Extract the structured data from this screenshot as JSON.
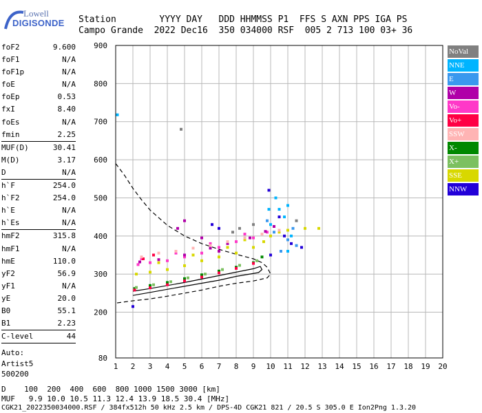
{
  "logo": {
    "line1": "Lowell",
    "line2": "DIGISONDE"
  },
  "header": {
    "line1": "Station        YYYY DAY   DDD HHMMSS P1  FFS S AXN PPS IGA PS",
    "line2": "Campo Grande  2022 Dec16  350 034000 RSF  005 2 713 100 03+ 36"
  },
  "params_group1": [
    {
      "label": "foF2",
      "value": "9.600"
    },
    {
      "label": "foF1",
      "value": "N/A"
    },
    {
      "label": "foF1p",
      "value": "N/A"
    },
    {
      "label": "foE",
      "value": "N/A"
    },
    {
      "label": "foEp",
      "value": "0.53"
    },
    {
      "label": "fxI",
      "value": "8.40"
    },
    {
      "label": "foEs",
      "value": "N/A"
    },
    {
      "label": "fmin",
      "value": "2.25"
    }
  ],
  "params_group2": [
    {
      "label": "MUF(D)",
      "value": "30.41"
    },
    {
      "label": "M(D)",
      "value": "3.17"
    },
    {
      "label": "D",
      "value": "N/A"
    }
  ],
  "params_group3": [
    {
      "label": "h`F",
      "value": "254.0"
    },
    {
      "label": "h`F2",
      "value": "254.0"
    },
    {
      "label": "h`E",
      "value": "N/A"
    },
    {
      "label": "h`Es",
      "value": "N/A"
    }
  ],
  "params_group4": [
    {
      "label": "hmF2",
      "value": "315.8"
    },
    {
      "label": "hmF1",
      "value": "N/A"
    },
    {
      "label": "hmE",
      "value": "110.0"
    },
    {
      "label": "yF2",
      "value": "56.9"
    },
    {
      "label": "yF1",
      "value": "N/A"
    },
    {
      "label": "yE",
      "value": "20.0"
    },
    {
      "label": "B0",
      "value": "55.1"
    },
    {
      "label": "B1",
      "value": "2.23"
    }
  ],
  "clevel": {
    "label": "C-level",
    "value": "44"
  },
  "auto_notes": [
    "Auto:",
    "Artist5",
    "500200"
  ],
  "legend": [
    {
      "label": "NoVal",
      "color": "#808080"
    },
    {
      "label": "NNE",
      "color": "#00b4ff"
    },
    {
      "label": "E",
      "color": "#3a98ee"
    },
    {
      "label": "W",
      "color": "#b000a8"
    },
    {
      "label": "Vo-",
      "color": "#ff38c8"
    },
    {
      "label": "Vo+",
      "color": "#ff0044"
    },
    {
      "label": "SSW",
      "color": "#ffb4b4"
    },
    {
      "label": "X-",
      "color": "#008800"
    },
    {
      "label": "X+",
      "color": "#7cc060"
    },
    {
      "label": "SSE",
      "color": "#d8d800"
    },
    {
      "label": "NNW",
      "color": "#2200d8"
    }
  ],
  "footer": {
    "line1": "D    100  200  400  600  800 1000 1500 3000 [km]",
    "line2": "MUF   9.9 10.0 10.5 11.3 12.4 13.9 18.5 30.4 [MHz]",
    "line3": "CGK21_2022350034000.RSF / 384fx512h 50 kHz 2.5 km / DPS-4D CGK21 821 / 20.5 S 305.0 E Ion2Png 1.3.20"
  },
  "chart_data": {
    "type": "scatter",
    "title": "",
    "xlabel": "",
    "ylabel": "",
    "xlim": [
      1,
      20
    ],
    "ylim": [
      80,
      900
    ],
    "x_ticks": [
      1,
      2,
      3,
      4,
      5,
      6,
      7,
      8,
      9,
      10,
      11,
      12,
      13,
      14,
      15,
      16,
      17,
      18,
      19,
      20
    ],
    "y_ticks": [
      80,
      200,
      300,
      400,
      500,
      600,
      700,
      800,
      900
    ],
    "grid": true,
    "series": [
      {
        "color": "#d8d800",
        "points": [
          [
            2.2,
            300
          ],
          [
            3,
            305
          ],
          [
            4,
            312
          ],
          [
            5,
            322
          ],
          [
            6,
            335
          ],
          [
            7,
            345
          ],
          [
            8,
            355
          ],
          [
            9,
            370
          ],
          [
            9.6,
            385
          ],
          [
            10,
            400
          ],
          [
            10.5,
            410
          ],
          [
            11,
            415
          ],
          [
            12,
            420
          ],
          [
            12.8,
            420
          ],
          [
            3.5,
            330
          ],
          [
            5.5,
            350
          ],
          [
            7.5,
            370
          ],
          [
            8.5,
            390
          ]
        ]
      },
      {
        "color": "#ff38c8",
        "points": [
          [
            2.3,
            325
          ],
          [
            3,
            330
          ],
          [
            4,
            335
          ],
          [
            5,
            345
          ],
          [
            6,
            355
          ],
          [
            7,
            370
          ],
          [
            8,
            385
          ],
          [
            9,
            395
          ],
          [
            9.8,
            410
          ],
          [
            2.5,
            340
          ],
          [
            4.5,
            355
          ],
          [
            6.5,
            380
          ],
          [
            8.5,
            405
          ]
        ]
      },
      {
        "color": "#b000a8",
        "points": [
          [
            2.4,
            332
          ],
          [
            3.5,
            338
          ],
          [
            5,
            350
          ],
          [
            6.5,
            368
          ],
          [
            7.5,
            380
          ],
          [
            8.8,
            395
          ],
          [
            9.7,
            412
          ],
          [
            10.2,
            425
          ],
          [
            4.6,
            420
          ],
          [
            5,
            440
          ],
          [
            6,
            395
          ],
          [
            7,
            360
          ]
        ]
      },
      {
        "color": "#008800",
        "points": [
          [
            2.1,
            262
          ],
          [
            3,
            270
          ],
          [
            4,
            278
          ],
          [
            5,
            288
          ],
          [
            6,
            298
          ],
          [
            7,
            308
          ],
          [
            8,
            318
          ],
          [
            9,
            330
          ],
          [
            9.5,
            345
          ]
        ]
      },
      {
        "color": "#7cc060",
        "points": [
          [
            2.2,
            265
          ],
          [
            3.2,
            272
          ],
          [
            4.2,
            280
          ],
          [
            5.2,
            290
          ],
          [
            6.2,
            300
          ],
          [
            7.2,
            312
          ],
          [
            8.2,
            323
          ],
          [
            9.2,
            335
          ]
        ]
      },
      {
        "color": "#ff0044",
        "points": [
          [
            2.1,
            258
          ],
          [
            3,
            264
          ],
          [
            4,
            272
          ],
          [
            5,
            282
          ],
          [
            6,
            292
          ],
          [
            7,
            303
          ],
          [
            8,
            315
          ],
          [
            9,
            328
          ],
          [
            2.6,
            340
          ],
          [
            3.2,
            350
          ]
        ]
      },
      {
        "color": "#00b4ff",
        "points": [
          [
            10,
            430
          ],
          [
            10.5,
            470
          ],
          [
            11,
            480
          ],
          [
            10.8,
            450
          ],
          [
            11.2,
            400
          ],
          [
            10.3,
            500
          ],
          [
            9.9,
            470
          ],
          [
            11,
            360
          ],
          [
            1.1,
            718
          ]
        ]
      },
      {
        "color": "#3a98ee",
        "points": [
          [
            10.2,
            410
          ],
          [
            11,
            390
          ],
          [
            11.5,
            375
          ],
          [
            10.6,
            360
          ],
          [
            9.8,
            440
          ],
          [
            11.3,
            420
          ]
        ]
      },
      {
        "color": "#2200d8",
        "points": [
          [
            9.9,
            520
          ],
          [
            10.5,
            450
          ],
          [
            11.2,
            380
          ],
          [
            11.8,
            370
          ],
          [
            10,
            350
          ],
          [
            7,
            420
          ],
          [
            6.6,
            430
          ],
          [
            10.8,
            400
          ],
          [
            2,
            215
          ]
        ]
      },
      {
        "color": "#ffb4b4",
        "points": [
          [
            2.5,
            345
          ],
          [
            3.5,
            355
          ],
          [
            4.5,
            360
          ],
          [
            5.5,
            368
          ],
          [
            6.5,
            375
          ],
          [
            7.5,
            385
          ],
          [
            8.5,
            395
          ],
          [
            9.5,
            405
          ],
          [
            10.5,
            415
          ]
        ]
      },
      {
        "color": "#808080",
        "points": [
          [
            8.2,
            420
          ],
          [
            9,
            430
          ],
          [
            7.8,
            410
          ],
          [
            4.8,
            680
          ],
          [
            11.5,
            440
          ]
        ]
      }
    ],
    "dashed_curve": {
      "color": "#000000",
      "points": [
        [
          1,
          590
        ],
        [
          1.5,
          560
        ],
        [
          2,
          525
        ],
        [
          2.5,
          495
        ],
        [
          3,
          468
        ],
        [
          4,
          428
        ],
        [
          5,
          400
        ],
        [
          6,
          380
        ],
        [
          7,
          365
        ],
        [
          8,
          352
        ],
        [
          9,
          340
        ],
        [
          9.5,
          330
        ],
        [
          9.8,
          318
        ],
        [
          10,
          300
        ],
        [
          9.8,
          290
        ],
        [
          9,
          282
        ],
        [
          8,
          276
        ],
        [
          7,
          268
        ],
        [
          6,
          258
        ],
        [
          5,
          250
        ],
        [
          4,
          242
        ],
        [
          3,
          235
        ],
        [
          2,
          230
        ],
        [
          1,
          224
        ]
      ]
    },
    "solid_curve": {
      "color": "#000000",
      "points": [
        [
          2,
          255
        ],
        [
          3,
          262
        ],
        [
          4,
          270
        ],
        [
          5,
          278
        ],
        [
          6,
          287
        ],
        [
          7,
          296
        ],
        [
          8,
          305
        ],
        [
          9,
          314
        ],
        [
          9.4,
          320
        ],
        [
          9.5,
          312
        ],
        [
          9.3,
          304
        ],
        [
          8,
          294
        ],
        [
          7,
          284
        ],
        [
          6,
          276
        ],
        [
          5,
          268
        ],
        [
          4,
          260
        ],
        [
          3,
          252
        ],
        [
          2,
          244
        ]
      ]
    }
  }
}
